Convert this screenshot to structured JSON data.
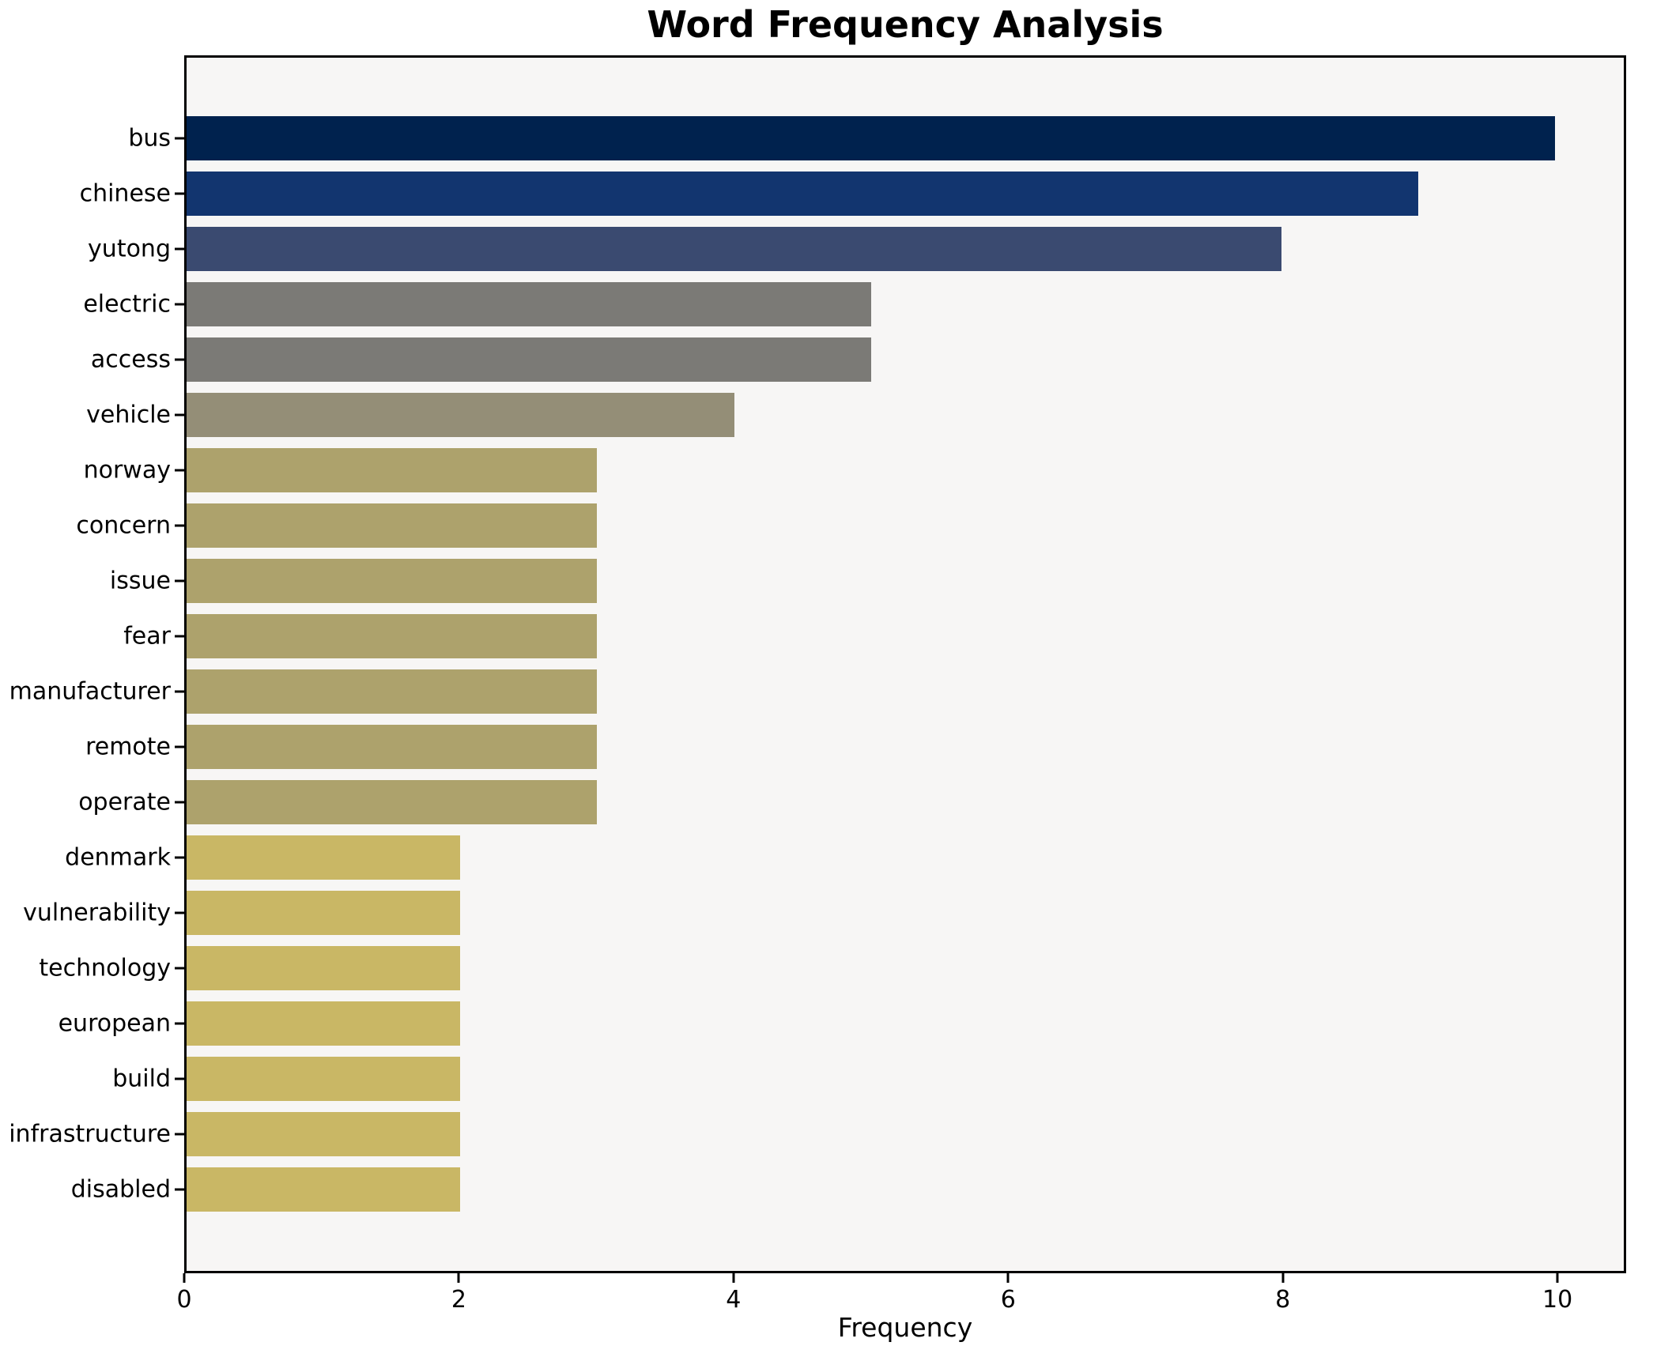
{
  "chart_data": {
    "type": "bar",
    "orientation": "horizontal",
    "title": "Word Frequency Analysis",
    "xlabel": "Frequency",
    "ylabel": "",
    "categories": [
      "bus",
      "chinese",
      "yutong",
      "electric",
      "access",
      "vehicle",
      "norway",
      "concern",
      "issue",
      "fear",
      "manufacturer",
      "remote",
      "operate",
      "denmark",
      "vulnerability",
      "technology",
      "european",
      "build",
      "infrastructure",
      "disabled"
    ],
    "values": [
      10,
      9,
      8,
      5,
      5,
      4,
      3,
      3,
      3,
      3,
      3,
      3,
      3,
      2,
      2,
      2,
      2,
      2,
      2,
      2
    ],
    "bar_colors": [
      "#00224e",
      "#12356f",
      "#3a4a70",
      "#7b7a76",
      "#7b7a76",
      "#948e77",
      "#ada26c",
      "#ada26c",
      "#ada26c",
      "#ada26c",
      "#ada26c",
      "#ada26c",
      "#ada26c",
      "#c9b765",
      "#c9b765",
      "#c9b765",
      "#c9b765",
      "#c9b765",
      "#c9b765",
      "#c9b765"
    ],
    "xlim": [
      0,
      10.5
    ],
    "xticks": [
      0,
      2,
      4,
      6,
      8,
      10
    ],
    "grid": false,
    "legend": false,
    "plot_background": "#f7f6f5",
    "figure_background": "#ffffff",
    "spine_color": "#000000"
  }
}
